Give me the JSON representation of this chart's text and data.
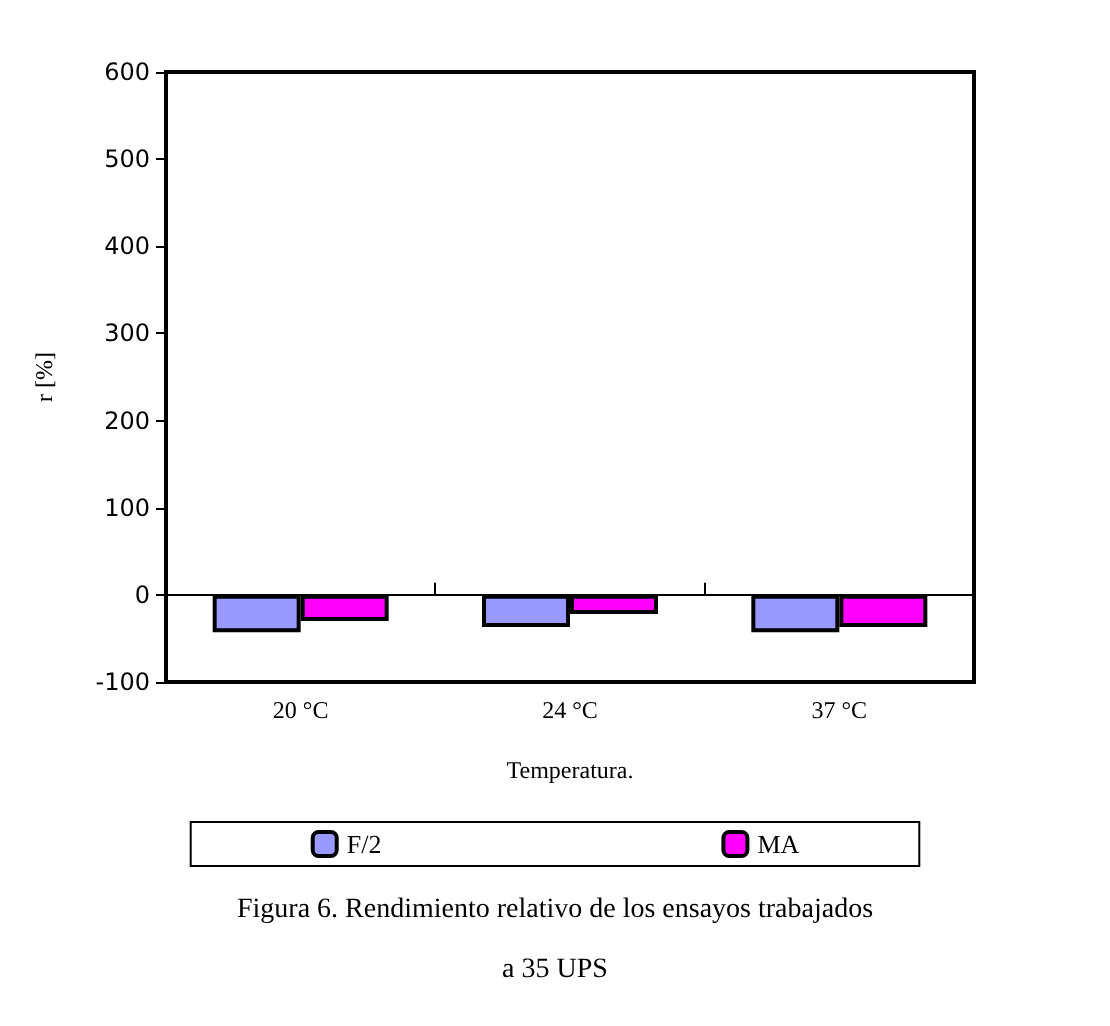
{
  "chart_data": {
    "type": "bar",
    "title": "Figura 6. Rendimiento relativo de los ensayos trabajados a 35 UPS",
    "xlabel": "Temperatura.",
    "ylabel": "r [%]",
    "categories": [
      "20 °C",
      "24 °C",
      "37 °C"
    ],
    "series": [
      {
        "name": "F/2",
        "color": "#9999ff",
        "values": [
          -43,
          -37,
          -43
        ]
      },
      {
        "name": "MA",
        "color": "#ff00ff",
        "values": [
          -30,
          -22,
          -37
        ]
      }
    ],
    "ylim": [
      -100,
      600
    ],
    "yticks": [
      -100,
      0,
      100,
      200,
      300,
      400,
      500,
      600
    ],
    "legend": "bottom"
  }
}
